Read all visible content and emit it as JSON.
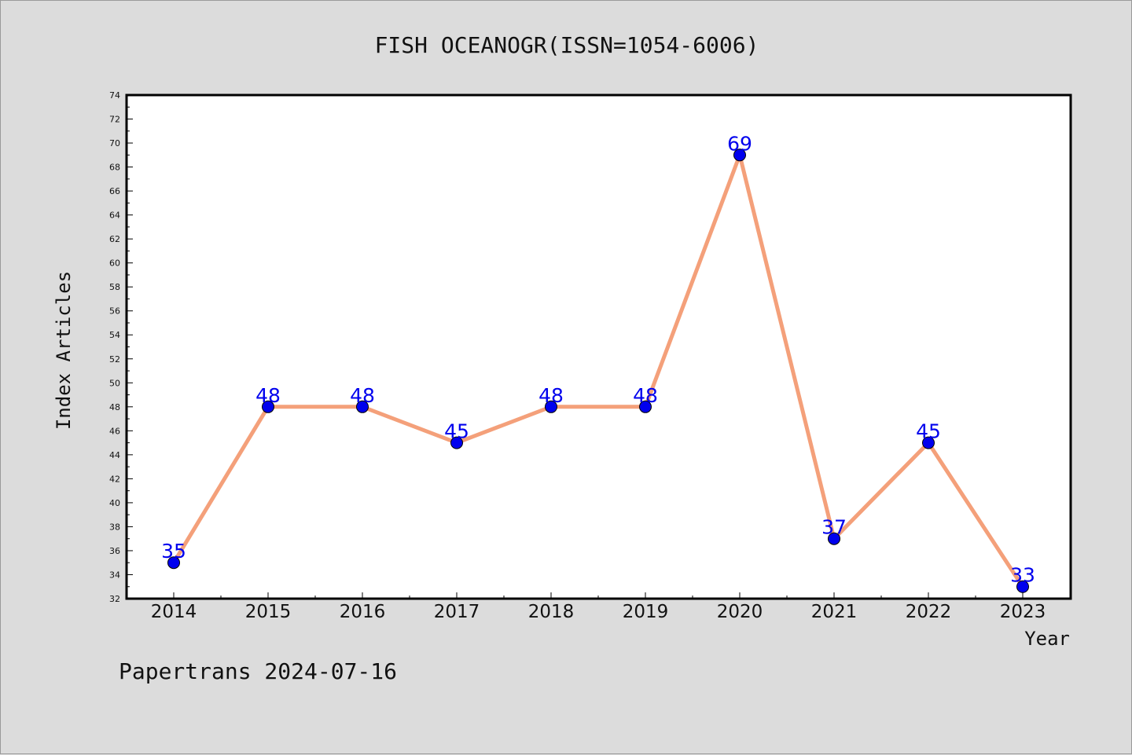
{
  "chart_data": {
    "type": "line",
    "title": "FISH OCEANOGR(ISSN=1054-6006)",
    "xlabel": "Year",
    "ylabel": "Index Articles",
    "categories": [
      "2014",
      "2015",
      "2016",
      "2017",
      "2018",
      "2019",
      "2020",
      "2021",
      "2022",
      "2023"
    ],
    "series": [
      {
        "values": [
          35,
          48,
          48,
          45,
          48,
          48,
          69,
          37,
          45,
          33
        ]
      }
    ],
    "ylim": [
      32,
      74
    ],
    "yticks": [
      32,
      34,
      36,
      38,
      40,
      42,
      44,
      46,
      48,
      50,
      52,
      54,
      56,
      58,
      60,
      62,
      64,
      66,
      68,
      70,
      72,
      74
    ],
    "data_labels": true,
    "grid": false,
    "line_color": "#f4a07a",
    "marker_color": "#0000ee",
    "label_color": "#0000ee",
    "background": "#dcdcdc",
    "plot_background": "#ffffff"
  },
  "footer": "Papertrans 2024-07-16"
}
